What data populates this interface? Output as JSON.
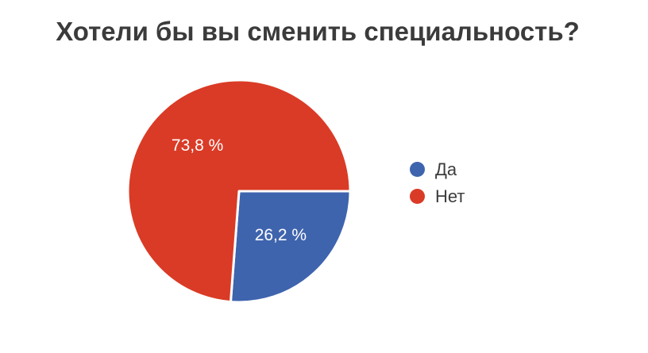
{
  "title": "Хотели бы вы сменить специальность?",
  "colors": {
    "yes_blue": "#3F64AE",
    "no_red": "#DA3B26",
    "slice_border": "#ffffff",
    "title_text": "#3b3b3b",
    "legend_text": "#3c3c3c",
    "label_text": "#ffffff",
    "background": "#ffffff"
  },
  "chart_data": {
    "type": "pie",
    "title": "Хотели бы вы сменить специальность?",
    "categories": [
      "Да",
      "Нет"
    ],
    "values": [
      26.2,
      73.8
    ],
    "display_labels": [
      "26,2 %",
      "73,8 %"
    ],
    "colors": [
      "#3F64AE",
      "#DA3B26"
    ],
    "start_angle_deg": 0,
    "direction": "clockwise",
    "slice_border_color": "#ffffff",
    "legend_position": "right",
    "grid": false
  },
  "legend": {
    "items": [
      {
        "label": "Да",
        "color": "#3F64AE"
      },
      {
        "label": "Нет",
        "color": "#DA3B26"
      }
    ]
  }
}
